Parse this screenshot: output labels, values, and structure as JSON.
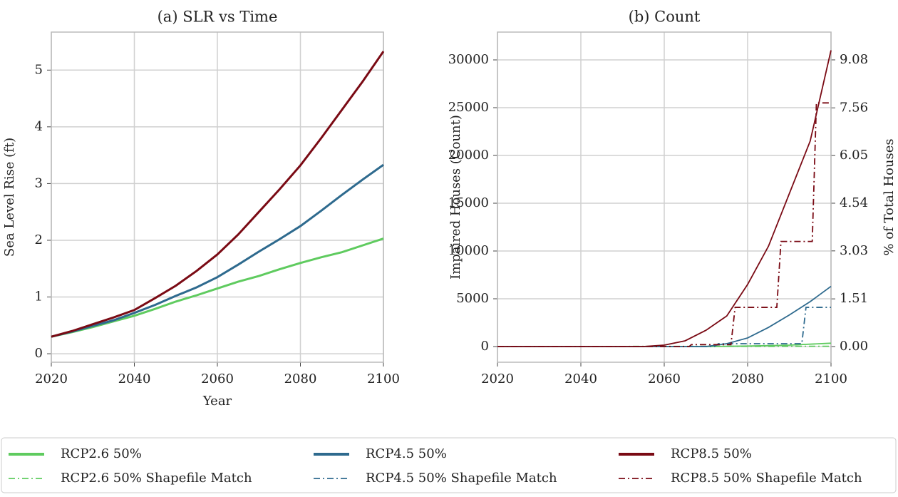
{
  "chart_data": [
    {
      "type": "line",
      "title": "(a) SLR vs Time",
      "xlabel": "Year",
      "ylabel": "Sea Level Rise (ft)",
      "x": [
        2020,
        2025,
        2030,
        2035,
        2040,
        2045,
        2050,
        2055,
        2060,
        2065,
        2070,
        2075,
        2080,
        2085,
        2090,
        2095,
        2100
      ],
      "series": [
        {
          "color": "#5fcb5f",
          "style": "solid",
          "values": [
            0.3,
            0.38,
            0.47,
            0.57,
            0.67,
            0.79,
            0.92,
            1.03,
            1.15,
            1.27,
            1.37,
            1.49,
            1.6,
            1.7,
            1.79,
            1.91,
            2.03
          ]
        },
        {
          "color": "#2e6a8e",
          "style": "solid",
          "values": [
            0.3,
            0.39,
            0.49,
            0.59,
            0.72,
            0.86,
            1.02,
            1.17,
            1.35,
            1.57,
            1.8,
            2.02,
            2.25,
            2.52,
            2.8,
            3.07,
            3.33
          ]
        },
        {
          "color": "#7a0a14",
          "style": "solid",
          "values": [
            0.3,
            0.4,
            0.52,
            0.64,
            0.77,
            0.98,
            1.2,
            1.46,
            1.75,
            2.1,
            2.5,
            2.9,
            3.32,
            3.8,
            4.3,
            4.8,
            5.33
          ]
        }
      ],
      "xlim": [
        2020,
        2100
      ],
      "xticks": [
        2020,
        2040,
        2060,
        2080,
        2100
      ],
      "ylim": [
        -0.15,
        5.67
      ],
      "yticks": [
        0,
        1,
        2,
        3,
        4,
        5
      ],
      "grid": true
    },
    {
      "type": "line",
      "title": "(b) Count",
      "ylabel": "Impaired Houses (Count)",
      "y2label": "% of Total Houses",
      "series": [
        {
          "name": "RCP2.6 50%",
          "color": "#5fcb5f",
          "style": "solid",
          "x": [
            2020,
            2070,
            2080,
            2090,
            2100
          ],
          "values": [
            0,
            0,
            50,
            150,
            350
          ]
        },
        {
          "name": "RCP2.6 50% Shapefile Match",
          "color": "#5fcb5f",
          "style": "dashdot",
          "x": [
            2020,
            2100
          ],
          "values": [
            0,
            30
          ]
        },
        {
          "name": "RCP4.5 50%",
          "color": "#2e6a8e",
          "style": "solid",
          "x": [
            2020,
            2070,
            2075,
            2080,
            2085,
            2090,
            2095,
            2100
          ],
          "values": [
            0,
            0,
            300,
            900,
            2000,
            3300,
            4700,
            6300
          ]
        },
        {
          "name": "RCP4.5 50% Shapefile Match",
          "color": "#2e6a8e",
          "style": "dashdot",
          "x": [
            2020,
            2072,
            2073,
            2093,
            2094,
            2100
          ],
          "values": [
            0,
            0,
            300,
            300,
            4100,
            4100
          ]
        },
        {
          "name": "RCP8.5 50%",
          "color": "#7a0a14",
          "style": "solid",
          "x": [
            2020,
            2055,
            2060,
            2065,
            2070,
            2075,
            2080,
            2085,
            2090,
            2095,
            2100
          ],
          "values": [
            0,
            0,
            150,
            600,
            1700,
            3200,
            6500,
            10500,
            16000,
            21500,
            31000
          ]
        },
        {
          "name": "RCP8.5 50% Shapefile Match",
          "color": "#7a0a14",
          "style": "dashdot",
          "x": [
            2020,
            2066,
            2066.5,
            2076,
            2077,
            2087,
            2088,
            2095.5,
            2096.5,
            2100
          ],
          "values": [
            0,
            0,
            200,
            200,
            4100,
            4100,
            11000,
            11000,
            25500,
            25500
          ]
        }
      ],
      "xlim": [
        2020,
        2100
      ],
      "xticks": [
        2020,
        2040,
        2060,
        2080,
        2100
      ],
      "ylim": [
        -1642,
        32910
      ],
      "yticks": [
        0,
        5000,
        10000,
        15000,
        20000,
        25000,
        30000
      ],
      "y2lim": [
        -0.497,
        9.96
      ],
      "y2ticks": [
        {
          "value": 0,
          "label": "0.00"
        },
        1.51,
        3.03,
        4.54,
        6.05,
        7.56,
        9.08
      ],
      "grid": true
    }
  ]
}
